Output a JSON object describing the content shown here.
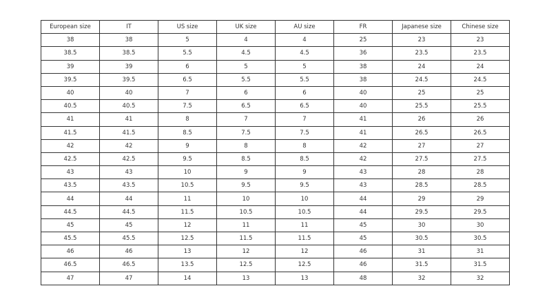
{
  "table": {
    "headers": [
      "European size",
      "IT",
      "US size",
      "UK size",
      "AU size",
      "FR",
      "Japanese size",
      "Chinese size"
    ],
    "rows": [
      [
        "38",
        "38",
        "5",
        "4",
        "4",
        "25",
        "23",
        "23"
      ],
      [
        "38.5",
        "38.5",
        "5.5",
        "4.5",
        "4.5",
        "36",
        "23.5",
        "23.5"
      ],
      [
        "39",
        "39",
        "6",
        "5",
        "5",
        "38",
        "24",
        "24"
      ],
      [
        "39.5",
        "39.5",
        "6.5",
        "5.5",
        "5.5",
        "38",
        "24.5",
        "24.5"
      ],
      [
        "40",
        "40",
        "7",
        "6",
        "6",
        "40",
        "25",
        "25"
      ],
      [
        "40.5",
        "40.5",
        "7.5",
        "6.5",
        "6.5",
        "40",
        "25.5",
        "25.5"
      ],
      [
        "41",
        "41",
        "8",
        "7",
        "7",
        "41",
        "26",
        "26"
      ],
      [
        "41.5",
        "41.5",
        "8.5",
        "7.5",
        "7.5",
        "41",
        "26.5",
        "26.5"
      ],
      [
        "42",
        "42",
        "9",
        "8",
        "8",
        "42",
        "27",
        "27"
      ],
      [
        "42.5",
        "42.5",
        "9.5",
        "8.5",
        "8.5",
        "42",
        "27.5",
        "27.5"
      ],
      [
        "43",
        "43",
        "10",
        "9",
        "9",
        "43",
        "28",
        "28"
      ],
      [
        "43.5",
        "43.5",
        "10.5",
        "9.5",
        "9.5",
        "43",
        "28.5",
        "28.5"
      ],
      [
        "44",
        "44",
        "11",
        "10",
        "10",
        "44",
        "29",
        "29"
      ],
      [
        "44.5",
        "44.5",
        "11.5",
        "10.5",
        "10.5",
        "44",
        "29.5",
        "29.5"
      ],
      [
        "45",
        "45",
        "12",
        "11",
        "11",
        "45",
        "30",
        "30"
      ],
      [
        "45.5",
        "45.5",
        "12.5",
        "11.5",
        "11.5",
        "45",
        "30.5",
        "30.5"
      ],
      [
        "46",
        "46",
        "13",
        "12",
        "12",
        "46",
        "31",
        "31"
      ],
      [
        "46.5",
        "46.5",
        "13.5",
        "12.5",
        "12.5",
        "46",
        "31.5",
        "31.5"
      ],
      [
        "47",
        "47",
        "14",
        "13",
        "13",
        "48",
        "32",
        "32"
      ]
    ]
  }
}
